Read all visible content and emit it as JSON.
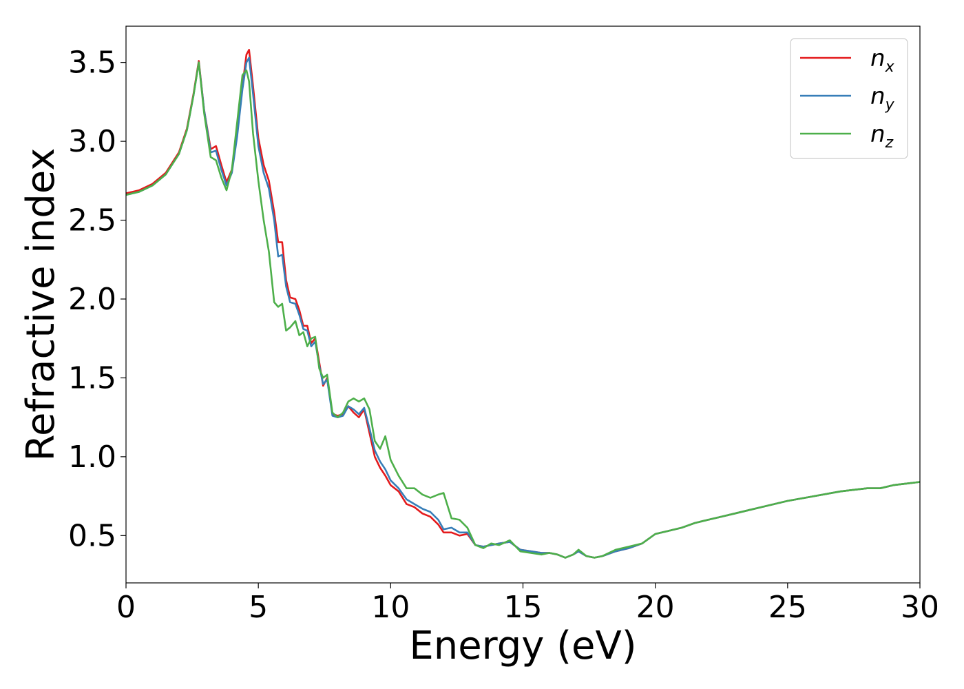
{
  "chart_data": {
    "type": "line",
    "xlabel": "Energy (eV)",
    "ylabel": "Refractive index",
    "xlim": [
      0,
      30
    ],
    "ylim": [
      0.2,
      3.73
    ],
    "xticks": [
      "0",
      "5",
      "10",
      "15",
      "20",
      "25",
      "30"
    ],
    "yticks": [
      "0.5",
      "1.0",
      "1.5",
      "2.0",
      "2.5",
      "3.0",
      "3.5"
    ],
    "grid": false,
    "legend_position": "top-right",
    "series": [
      {
        "name": "n",
        "subscript": "x",
        "color": "#e41a1c",
        "x": [
          0,
          0.5,
          1,
          1.5,
          2,
          2.3,
          2.55,
          2.75,
          2.95,
          3.2,
          3.4,
          3.6,
          3.8,
          4.0,
          4.2,
          4.4,
          4.55,
          4.65,
          4.8,
          5.0,
          5.2,
          5.4,
          5.6,
          5.75,
          5.9,
          6.05,
          6.2,
          6.4,
          6.55,
          6.7,
          6.85,
          7.0,
          7.15,
          7.3,
          7.45,
          7.6,
          7.8,
          8.0,
          8.2,
          8.4,
          8.6,
          8.8,
          9.0,
          9.2,
          9.4,
          9.6,
          9.8,
          10.0,
          10.3,
          10.6,
          10.9,
          11.2,
          11.5,
          11.8,
          12.0,
          12.3,
          12.6,
          12.9,
          13.2,
          13.5,
          13.8,
          14.1,
          14.5,
          14.9,
          15.3,
          15.7,
          16.0,
          16.3,
          16.6,
          16.9,
          17.1,
          17.4,
          17.7,
          18.0,
          18.5,
          19.0,
          19.5,
          20.0,
          20.5,
          21.0,
          21.5,
          22.0,
          22.5,
          23.0,
          23.5,
          24.0,
          25.0,
          26.0,
          27.0,
          28.0,
          28.5,
          29.0,
          29.5,
          30.0
        ],
        "y": [
          2.67,
          2.69,
          2.73,
          2.8,
          2.93,
          3.08,
          3.3,
          3.51,
          3.2,
          2.95,
          2.97,
          2.85,
          2.74,
          2.82,
          3.05,
          3.35,
          3.55,
          3.58,
          3.35,
          3.02,
          2.85,
          2.75,
          2.55,
          2.36,
          2.36,
          2.12,
          2.01,
          2.0,
          1.93,
          1.83,
          1.83,
          1.72,
          1.75,
          1.6,
          1.45,
          1.5,
          1.27,
          1.26,
          1.27,
          1.32,
          1.28,
          1.25,
          1.3,
          1.15,
          1.0,
          0.93,
          0.88,
          0.82,
          0.78,
          0.7,
          0.68,
          0.64,
          0.62,
          0.57,
          0.52,
          0.52,
          0.5,
          0.51,
          0.44,
          0.43,
          0.44,
          0.45,
          0.46,
          0.41,
          0.4,
          0.39,
          0.39,
          0.38,
          0.36,
          0.38,
          0.4,
          0.37,
          0.36,
          0.37,
          0.4,
          0.42,
          0.45,
          0.51,
          0.53,
          0.55,
          0.58,
          0.6,
          0.62,
          0.64,
          0.66,
          0.68,
          0.72,
          0.75,
          0.78,
          0.8,
          0.8,
          0.82,
          0.83,
          0.84
        ]
      },
      {
        "name": "n",
        "subscript": "y",
        "color": "#377eb8",
        "x": [
          0,
          0.5,
          1,
          1.5,
          2,
          2.3,
          2.55,
          2.75,
          2.95,
          3.2,
          3.4,
          3.6,
          3.8,
          4.0,
          4.2,
          4.4,
          4.55,
          4.65,
          4.8,
          5.0,
          5.2,
          5.4,
          5.6,
          5.75,
          5.9,
          6.05,
          6.2,
          6.4,
          6.55,
          6.7,
          6.85,
          7.0,
          7.15,
          7.3,
          7.45,
          7.6,
          7.8,
          8.0,
          8.2,
          8.4,
          8.6,
          8.8,
          9.0,
          9.2,
          9.4,
          9.6,
          9.8,
          10.0,
          10.3,
          10.6,
          10.9,
          11.2,
          11.5,
          11.8,
          12.0,
          12.3,
          12.6,
          12.9,
          13.2,
          13.5,
          13.8,
          14.1,
          14.5,
          14.9,
          15.3,
          15.7,
          16.0,
          16.3,
          16.6,
          16.9,
          17.1,
          17.4,
          17.7,
          18.0,
          18.5,
          19.0,
          19.5,
          20.0,
          20.5,
          21.0,
          21.5,
          22.0,
          22.5,
          23.0,
          23.5,
          24.0,
          25.0,
          26.0,
          27.0,
          28.0,
          28.5,
          29.0,
          29.5,
          30.0
        ],
        "y": [
          2.66,
          2.68,
          2.72,
          2.79,
          2.92,
          3.07,
          3.29,
          3.5,
          3.2,
          2.93,
          2.94,
          2.82,
          2.72,
          2.8,
          3.03,
          3.33,
          3.5,
          3.53,
          3.3,
          2.97,
          2.8,
          2.7,
          2.5,
          2.27,
          2.28,
          2.08,
          1.98,
          1.97,
          1.9,
          1.81,
          1.8,
          1.7,
          1.73,
          1.58,
          1.46,
          1.49,
          1.26,
          1.25,
          1.26,
          1.32,
          1.3,
          1.27,
          1.31,
          1.18,
          1.04,
          0.97,
          0.92,
          0.85,
          0.8,
          0.73,
          0.7,
          0.67,
          0.65,
          0.6,
          0.54,
          0.55,
          0.52,
          0.52,
          0.44,
          0.43,
          0.44,
          0.45,
          0.46,
          0.41,
          0.4,
          0.39,
          0.39,
          0.38,
          0.36,
          0.38,
          0.4,
          0.37,
          0.36,
          0.37,
          0.4,
          0.42,
          0.45,
          0.51,
          0.53,
          0.55,
          0.58,
          0.6,
          0.62,
          0.64,
          0.66,
          0.68,
          0.72,
          0.75,
          0.78,
          0.8,
          0.8,
          0.82,
          0.83,
          0.84
        ]
      },
      {
        "name": "n",
        "subscript": "z",
        "color": "#4daf4a",
        "x": [
          0,
          0.5,
          1,
          1.5,
          2,
          2.3,
          2.55,
          2.75,
          2.95,
          3.2,
          3.4,
          3.6,
          3.8,
          4.0,
          4.2,
          4.4,
          4.55,
          4.65,
          4.8,
          5.0,
          5.2,
          5.4,
          5.6,
          5.75,
          5.9,
          6.05,
          6.2,
          6.4,
          6.55,
          6.7,
          6.85,
          7.0,
          7.15,
          7.3,
          7.45,
          7.6,
          7.8,
          8.0,
          8.2,
          8.4,
          8.6,
          8.8,
          9.0,
          9.2,
          9.4,
          9.6,
          9.8,
          10.0,
          10.3,
          10.6,
          10.9,
          11.2,
          11.5,
          11.8,
          12.0,
          12.3,
          12.6,
          12.9,
          13.2,
          13.5,
          13.8,
          14.1,
          14.5,
          14.9,
          15.3,
          15.7,
          16.0,
          16.3,
          16.6,
          16.9,
          17.1,
          17.4,
          17.7,
          18.0,
          18.5,
          19.0,
          19.5,
          20.0,
          20.5,
          21.0,
          21.5,
          22.0,
          22.5,
          23.0,
          23.5,
          24.0,
          25.0,
          26.0,
          27.0,
          28.0,
          28.5,
          29.0,
          29.5,
          30.0
        ],
        "y": [
          2.66,
          2.68,
          2.72,
          2.79,
          2.92,
          3.07,
          3.29,
          3.5,
          3.18,
          2.9,
          2.88,
          2.77,
          2.69,
          2.82,
          3.12,
          3.42,
          3.45,
          3.38,
          3.05,
          2.75,
          2.5,
          2.3,
          1.98,
          1.95,
          1.97,
          1.8,
          1.82,
          1.86,
          1.77,
          1.79,
          1.7,
          1.75,
          1.76,
          1.56,
          1.5,
          1.52,
          1.28,
          1.25,
          1.28,
          1.35,
          1.37,
          1.35,
          1.37,
          1.3,
          1.1,
          1.05,
          1.13,
          0.98,
          0.88,
          0.8,
          0.8,
          0.76,
          0.74,
          0.76,
          0.77,
          0.61,
          0.6,
          0.55,
          0.44,
          0.42,
          0.45,
          0.44,
          0.47,
          0.4,
          0.39,
          0.38,
          0.39,
          0.38,
          0.36,
          0.38,
          0.41,
          0.37,
          0.36,
          0.37,
          0.41,
          0.43,
          0.45,
          0.51,
          0.53,
          0.55,
          0.58,
          0.6,
          0.62,
          0.64,
          0.66,
          0.68,
          0.72,
          0.75,
          0.78,
          0.8,
          0.8,
          0.82,
          0.83,
          0.84
        ]
      }
    ]
  }
}
